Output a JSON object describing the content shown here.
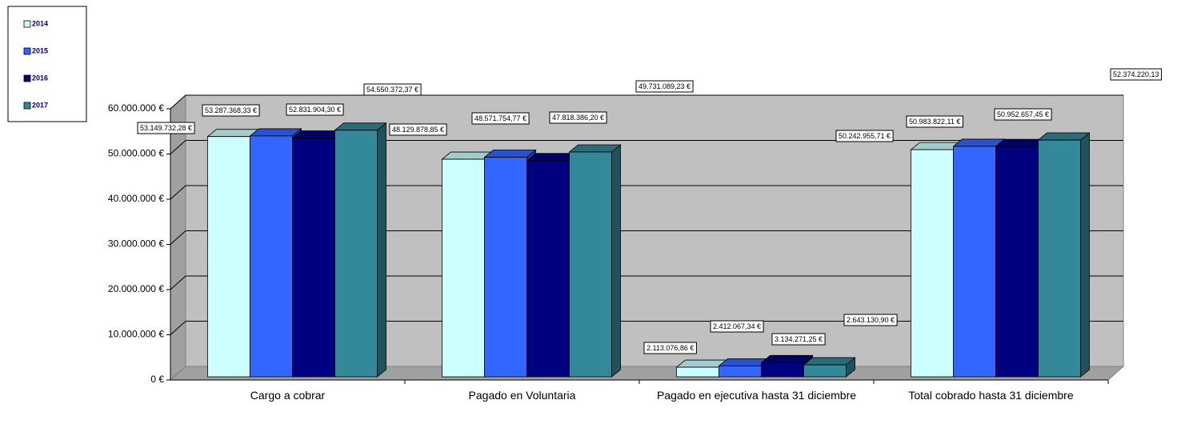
{
  "chart_data": {
    "type": "bar3d",
    "categories": [
      "Cargo a cobrar",
      "Pagado en Voluntaria",
      "Pagado en ejecutiva hasta 31 diciembre",
      "Total cobrado hasta 31 diciembre"
    ],
    "series": [
      {
        "name": "2014",
        "color": "#ccffff",
        "values": [
          53149732.28,
          48129878.85,
          2113076.86,
          50242955.71
        ],
        "value_labels": [
          "53.149.732,28 €",
          "48.129.878,85 €",
          "2.113.076,86 €",
          "50.242.955,71 €"
        ]
      },
      {
        "name": "2015",
        "color": "#3366ff",
        "values": [
          53287368.33,
          48571754.77,
          2412067.34,
          50983822.11
        ],
        "value_labels": [
          "53.287.368,33 €",
          "48.571.754,77 €",
          "2.412.067,34 €",
          "50.983.822,11 €"
        ]
      },
      {
        "name": "2016",
        "color": "#000080",
        "values": [
          52831904.3,
          47818386.2,
          3134271.25,
          50952657.45
        ],
        "value_labels": [
          "52.831.904,30 €",
          "47.818.386,20 €",
          "3.134.271,25 €",
          "50.952.657,45 €"
        ]
      },
      {
        "name": "2017",
        "color": "#33889a",
        "values": [
          54550372.37,
          49731089.23,
          2643130.9,
          52374220.13
        ],
        "value_labels": [
          "54.550.372,37 €",
          "49.731.089,23 €",
          "2.643.130,90 €",
          "52.374.220,13"
        ]
      }
    ],
    "ylim": [
      0,
      60000000
    ],
    "yticks": [
      {
        "value": 0,
        "label": "0 €"
      },
      {
        "value": 10000000,
        "label": "10.000.000 €"
      },
      {
        "value": 20000000,
        "label": "20.000.000 €"
      },
      {
        "value": 30000000,
        "label": "30.000.000 €"
      },
      {
        "value": 40000000,
        "label": "40.000.000 €"
      },
      {
        "value": 50000000,
        "label": "50.000.000 €"
      },
      {
        "value": 60000000,
        "label": "60.000.000 €"
      }
    ],
    "grid": true,
    "legend": "top-left"
  }
}
